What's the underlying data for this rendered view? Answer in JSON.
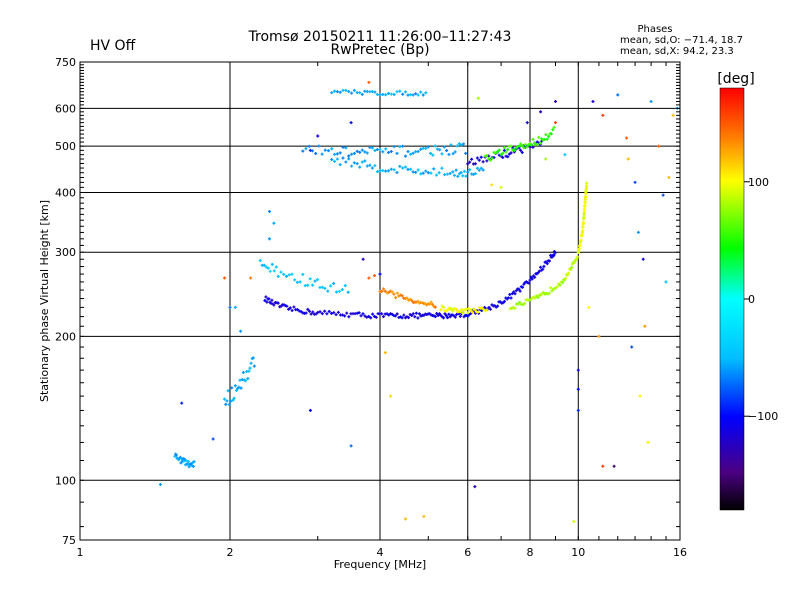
{
  "header": {
    "hv_status": "HV Off",
    "hv_color": "#e00000",
    "title_line1": "Tromsø 20150211 11:26:00–11:27:43",
    "title_line2": "RwPretec (Bp)"
  },
  "stats": {
    "heading": "Phases",
    "line_o": "mean, sd,O: −71.4, 18.7",
    "line_x": "mean, sd,X:  94.2, 23.3"
  },
  "colorbar": {
    "unit_label": "[deg]",
    "min": -180,
    "max": 180,
    "ticks": [
      {
        "value": 100,
        "label": "100"
      },
      {
        "value": 0,
        "label": "0"
      },
      {
        "value": -100,
        "label": "−100"
      }
    ]
  },
  "chart_data": {
    "type": "scatter",
    "title": "Tromsø 20150211 11:26:00–11:27:43",
    "subtitle": "RwPretec (Bp)",
    "xlabel": "Frequency [MHz]",
    "ylabel": "Stationary phase Virtual Height [km]",
    "x_scale": "log",
    "y_scale": "log",
    "xlim": [
      1,
      16
    ],
    "ylim": [
      75,
      750
    ],
    "x_ticks": [
      {
        "value": 1,
        "label": "1"
      },
      {
        "value": 2,
        "label": "2"
      },
      {
        "value": 4,
        "label": "4"
      },
      {
        "value": 6,
        "label": "6"
      },
      {
        "value": 8,
        "label": "8"
      },
      {
        "value": 10,
        "label": "10"
      },
      {
        "value": 16,
        "label": "16"
      }
    ],
    "y_ticks": [
      {
        "value": 75,
        "label": "75"
      },
      {
        "value": 100,
        "label": "100"
      },
      {
        "value": 200,
        "label": "200"
      },
      {
        "value": 300,
        "label": "300"
      },
      {
        "value": 400,
        "label": "400"
      },
      {
        "value": 500,
        "label": "500"
      },
      {
        "value": 600,
        "label": "600"
      },
      {
        "value": 750,
        "label": "750"
      }
    ],
    "grid": true,
    "traces": [
      {
        "f": [
          2.35,
          2.45,
          2.6,
          2.8,
          3.0,
          3.3,
          3.6,
          3.9,
          4.2,
          4.5,
          4.8,
          5.1,
          5.4,
          5.7,
          6.0
        ],
        "h": [
          240,
          234,
          229,
          226,
          224,
          223,
          222,
          221,
          221,
          221,
          221,
          221,
          221,
          222,
          222
        ],
        "phase": -112,
        "jitter": 0.012
      },
      {
        "f": [
          6.0,
          6.4,
          6.8,
          7.2,
          7.6,
          8.0,
          8.4,
          8.8,
          9.0
        ],
        "h": [
          223,
          227,
          232,
          240,
          250,
          262,
          276,
          292,
          302
        ],
        "phase": -110,
        "jitter": 0.012
      },
      {
        "f": [
          7.3,
          7.8,
          8.3,
          8.8,
          9.3,
          9.7,
          10.0
        ],
        "h": [
          230,
          235,
          241,
          250,
          262,
          278,
          298
        ],
        "phase": 82,
        "jitter": 0.012
      },
      {
        "f": [
          10.0,
          10.1,
          10.2,
          10.25,
          10.3,
          10.35,
          10.4
        ],
        "h": [
          300,
          315,
          332,
          350,
          372,
          395,
          420
        ],
        "phase": 95,
        "jitter": 0.008
      },
      {
        "f": [
          4.0,
          4.3,
          4.6,
          4.9,
          5.2
        ],
        "h": [
          250,
          244,
          239,
          235,
          232
        ],
        "phase": 135,
        "jitter": 0.012
      },
      {
        "f": [
          5.3,
          5.6,
          5.9,
          6.2,
          6.6
        ],
        "h": [
          229,
          227,
          226,
          227,
          228
        ],
        "phase": 100,
        "jitter": 0.012
      },
      {
        "f": [
          2.3,
          2.5,
          2.8,
          3.1,
          3.5
        ],
        "h": [
          285,
          272,
          262,
          254,
          248
        ],
        "phase": -45,
        "jitter": 0.03
      },
      {
        "f": [
          3.2,
          3.6,
          4.0,
          4.5,
          5.0,
          5.6,
          6.0,
          6.5
        ],
        "h": [
          470,
          460,
          450,
          446,
          442,
          440,
          441,
          445
        ],
        "phase": -55,
        "jitter": 0.02
      },
      {
        "f": [
          2.8,
          3.2,
          3.6,
          4.0,
          4.5,
          5.0,
          5.5,
          6.0
        ],
        "h": [
          490,
          488,
          485,
          487,
          488,
          490,
          492,
          495
        ],
        "phase": -60,
        "jitter": 0.025
      },
      {
        "f": [
          6.0,
          6.5,
          7.0,
          7.5,
          8.0,
          8.5
        ],
        "h": [
          460,
          470,
          480,
          490,
          500,
          510
        ],
        "phase": -115,
        "jitter": 0.02
      },
      {
        "f": [
          6.5,
          7.0,
          7.5,
          8.0,
          8.5,
          9.0
        ],
        "h": [
          470,
          485,
          495,
          505,
          520,
          540
        ],
        "phase": 55,
        "jitter": 0.02
      },
      {
        "f": [
          3.2,
          3.6,
          4.0,
          4.5,
          5.0
        ],
        "h": [
          650,
          648,
          646,
          645,
          646
        ],
        "phase": -55,
        "jitter": 0.01
      },
      {
        "f": [
          1.95,
          2.05,
          2.15,
          2.25
        ],
        "h": [
          145,
          155,
          165,
          180
        ],
        "phase": -55,
        "jitter": 0.04
      },
      {
        "f": [
          1.55,
          1.6,
          1.65,
          1.7
        ],
        "h": [
          113,
          110,
          108,
          108
        ],
        "phase": -55,
        "jitter": 0.015
      }
    ],
    "scatter_points": [
      {
        "f": 1.45,
        "h": 98,
        "phase": -60
      },
      {
        "f": 1.6,
        "h": 145,
        "phase": -90
      },
      {
        "f": 1.85,
        "h": 122,
        "phase": -80
      },
      {
        "f": 2.0,
        "h": 230,
        "phase": -70
      },
      {
        "f": 2.05,
        "h": 230,
        "phase": -55
      },
      {
        "f": 2.1,
        "h": 205,
        "phase": -60
      },
      {
        "f": 2.2,
        "h": 265,
        "phase": 140
      },
      {
        "f": 1.95,
        "h": 265,
        "phase": 150
      },
      {
        "f": 2.4,
        "h": 320,
        "phase": -60
      },
      {
        "f": 2.45,
        "h": 345,
        "phase": -55
      },
      {
        "f": 2.4,
        "h": 365,
        "phase": -65
      },
      {
        "f": 2.9,
        "h": 140,
        "phase": -100
      },
      {
        "f": 3.5,
        "h": 118,
        "phase": -70
      },
      {
        "f": 3.7,
        "h": 290,
        "phase": -120
      },
      {
        "f": 3.8,
        "h": 265,
        "phase": 150
      },
      {
        "f": 3.9,
        "h": 268,
        "phase": 150
      },
      {
        "f": 4.0,
        "h": 270,
        "phase": -100
      },
      {
        "f": 4.1,
        "h": 185,
        "phase": 120
      },
      {
        "f": 4.5,
        "h": 83,
        "phase": 120
      },
      {
        "f": 4.9,
        "h": 84,
        "phase": 120
      },
      {
        "f": 4.2,
        "h": 150,
        "phase": 110
      },
      {
        "f": 2.9,
        "h": 490,
        "phase": -90
      },
      {
        "f": 3.0,
        "h": 525,
        "phase": -110
      },
      {
        "f": 3.5,
        "h": 560,
        "phase": -100
      },
      {
        "f": 3.8,
        "h": 680,
        "phase": 150
      },
      {
        "f": 6.2,
        "h": 97,
        "phase": -120
      },
      {
        "f": 6.3,
        "h": 630,
        "phase": 80
      },
      {
        "f": 7.9,
        "h": 560,
        "phase": -110
      },
      {
        "f": 8.4,
        "h": 590,
        "phase": -120
      },
      {
        "f": 9.0,
        "h": 620,
        "phase": -130
      },
      {
        "f": 9.0,
        "h": 560,
        "phase": 160
      },
      {
        "f": 9.4,
        "h": 480,
        "phase": -40
      },
      {
        "f": 9.8,
        "h": 82,
        "phase": 90
      },
      {
        "f": 10.0,
        "h": 170,
        "phase": -110
      },
      {
        "f": 10.0,
        "h": 155,
        "phase": -100
      },
      {
        "f": 10.0,
        "h": 140,
        "phase": -90
      },
      {
        "f": 10.5,
        "h": 230,
        "phase": 100
      },
      {
        "f": 10.7,
        "h": 620,
        "phase": -120
      },
      {
        "f": 11.2,
        "h": 580,
        "phase": 160
      },
      {
        "f": 11.0,
        "h": 200,
        "phase": 130
      },
      {
        "f": 11.2,
        "h": 107,
        "phase": 160
      },
      {
        "f": 11.8,
        "h": 107,
        "phase": -150
      },
      {
        "f": 12.0,
        "h": 640,
        "phase": -70
      },
      {
        "f": 12.5,
        "h": 520,
        "phase": 150
      },
      {
        "f": 12.6,
        "h": 470,
        "phase": 120
      },
      {
        "f": 13.0,
        "h": 420,
        "phase": -80
      },
      {
        "f": 13.2,
        "h": 330,
        "phase": -60
      },
      {
        "f": 13.5,
        "h": 290,
        "phase": -110
      },
      {
        "f": 13.3,
        "h": 150,
        "phase": 100
      },
      {
        "f": 13.6,
        "h": 210,
        "phase": 130
      },
      {
        "f": 14.0,
        "h": 620,
        "phase": -60
      },
      {
        "f": 14.5,
        "h": 500,
        "phase": 150
      },
      {
        "f": 14.8,
        "h": 395,
        "phase": -80
      },
      {
        "f": 15.2,
        "h": 430,
        "phase": 120
      },
      {
        "f": 15.5,
        "h": 580,
        "phase": 120
      },
      {
        "f": 15.8,
        "h": 600,
        "phase": -60
      },
      {
        "f": 15.0,
        "h": 260,
        "phase": -40
      },
      {
        "f": 12.8,
        "h": 190,
        "phase": -80
      },
      {
        "f": 13.8,
        "h": 120,
        "phase": 100
      },
      {
        "f": 9.5,
        "h": 270,
        "phase": 90
      },
      {
        "f": 8.6,
        "h": 470,
        "phase": 80
      },
      {
        "f": 7.0,
        "h": 410,
        "phase": 90
      },
      {
        "f": 6.7,
        "h": 415,
        "phase": 110
      }
    ]
  }
}
